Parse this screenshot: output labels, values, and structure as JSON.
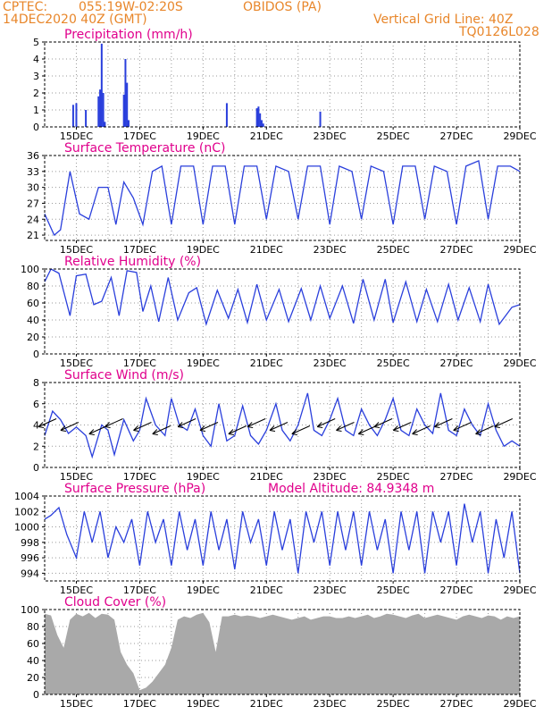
{
  "header": {
    "center": "CPTEC:",
    "location": "055:19W-02:20S",
    "station": "OBIDOS (PA)",
    "date": "14DEC2020 40Z (GMT)",
    "grid_note": "Vertical Grid Line: 40Z",
    "run_code": "TQ0126L028"
  },
  "colors": {
    "header": "#e8862a",
    "title": "#e0008c",
    "series": "#2a3fdc",
    "cloud": "#a9a9a9",
    "grid": "#9a9a9a"
  },
  "x_tick_labels": [
    "15DEC",
    "17DEC",
    "19DEC",
    "21DEC",
    "23DEC",
    "25DEC",
    "27DEC",
    "29DEC"
  ],
  "chart_data": [
    {
      "type": "bar",
      "title": "Precipitation (mm/h)",
      "ylim": [
        0,
        5
      ],
      "yticks": [
        0,
        1,
        2,
        3,
        4,
        5
      ],
      "x_days": [
        14.9,
        15.0,
        15.3,
        15.7,
        15.75,
        15.8,
        15.85,
        15.9,
        16.5,
        16.55,
        16.6,
        16.65,
        19.75,
        20.7,
        20.75,
        20.8,
        20.85,
        20.9,
        22.7
      ],
      "values": [
        1.3,
        1.4,
        1.0,
        1.8,
        2.2,
        4.9,
        2.0,
        0.3,
        1.9,
        4.0,
        2.6,
        0.4,
        1.4,
        1.1,
        1.2,
        0.8,
        0.4,
        0.2,
        0.9
      ]
    },
    {
      "type": "line",
      "title": "Surface Temperature (nC)",
      "ylim": [
        20,
        36
      ],
      "yticks": [
        21,
        24,
        27,
        30,
        33,
        36
      ],
      "x_days": [
        14.0,
        14.3,
        14.5,
        14.8,
        15.1,
        15.4,
        15.7,
        16.0,
        16.25,
        16.5,
        16.8,
        17.1,
        17.4,
        17.7,
        18.0,
        18.3,
        18.7,
        19.0,
        19.3,
        19.7,
        20.0,
        20.3,
        20.7,
        21.0,
        21.3,
        21.7,
        22.0,
        22.3,
        22.7,
        23.0,
        23.3,
        23.7,
        24.0,
        24.3,
        24.7,
        25.0,
        25.3,
        25.7,
        26.0,
        26.3,
        26.7,
        27.0,
        27.3,
        27.7,
        28.0,
        28.3,
        28.7,
        29.0
      ],
      "values": [
        25,
        21,
        22,
        33,
        25,
        24,
        30,
        30,
        23,
        31,
        28,
        23,
        33,
        34,
        23,
        34,
        34,
        23,
        34,
        34,
        23,
        34,
        34,
        24,
        34,
        33,
        24,
        34,
        34,
        23,
        34,
        33,
        24,
        34,
        33,
        23,
        34,
        34,
        24,
        34,
        33,
        23,
        34,
        35,
        24,
        34,
        34,
        33
      ]
    },
    {
      "type": "line",
      "title": "Relative Humidity (%)",
      "ylim": [
        0,
        100
      ],
      "yticks": [
        0,
        20,
        40,
        60,
        80,
        100
      ],
      "x_days": [
        14.0,
        14.2,
        14.45,
        14.8,
        15.0,
        15.3,
        15.55,
        15.8,
        16.1,
        16.35,
        16.6,
        16.9,
        17.1,
        17.35,
        17.6,
        17.9,
        18.2,
        18.55,
        18.8,
        19.1,
        19.45,
        19.8,
        20.1,
        20.4,
        20.7,
        21.0,
        21.4,
        21.7,
        22.1,
        22.4,
        22.7,
        23.0,
        23.4,
        23.75,
        24.05,
        24.4,
        24.75,
        25.0,
        25.4,
        25.75,
        26.05,
        26.4,
        26.75,
        27.05,
        27.4,
        27.75,
        28.0,
        28.35,
        28.75,
        29.0
      ],
      "values": [
        85,
        100,
        95,
        45,
        92,
        94,
        58,
        62,
        90,
        45,
        98,
        96,
        50,
        80,
        38,
        90,
        40,
        72,
        78,
        35,
        75,
        42,
        76,
        37,
        82,
        40,
        76,
        38,
        77,
        40,
        80,
        42,
        80,
        36,
        88,
        40,
        88,
        37,
        85,
        38,
        76,
        38,
        82,
        40,
        78,
        38,
        82,
        35,
        55,
        58
      ]
    },
    {
      "type": "line",
      "title": "Surface Wind (m/s)",
      "ylim": [
        0,
        8
      ],
      "yticks": [
        0,
        2,
        4,
        6,
        8
      ],
      "x_days": [
        14.0,
        14.25,
        14.5,
        14.75,
        15.0,
        15.3,
        15.5,
        15.8,
        16.0,
        16.2,
        16.5,
        16.8,
        17.0,
        17.2,
        17.5,
        17.8,
        18.0,
        18.25,
        18.5,
        18.75,
        19.0,
        19.25,
        19.5,
        19.75,
        20.0,
        20.25,
        20.5,
        20.75,
        21.0,
        21.3,
        21.5,
        21.75,
        22.0,
        22.3,
        22.5,
        22.75,
        23.0,
        23.25,
        23.5,
        23.75,
        24.0,
        24.25,
        24.5,
        24.75,
        25.0,
        25.25,
        25.5,
        25.75,
        26.0,
        26.25,
        26.5,
        26.75,
        27.0,
        27.25,
        27.5,
        27.75,
        28.0,
        28.25,
        28.5,
        28.75,
        29.0
      ],
      "values": [
        3,
        5.3,
        4.5,
        3.2,
        3.8,
        3.0,
        1.0,
        4.0,
        3.5,
        1.2,
        4.5,
        2.5,
        3.5,
        6.5,
        4.0,
        3.0,
        6.5,
        4.0,
        3.5,
        5.5,
        3.0,
        2.0,
        6.0,
        2.5,
        3.0,
        5.8,
        3.0,
        2.2,
        3.5,
        6.0,
        3.5,
        2.5,
        4.0,
        7.0,
        3.5,
        3.0,
        4.5,
        6.5,
        3.5,
        3.0,
        5.5,
        4.0,
        3.0,
        4.5,
        6.5,
        3.5,
        3.0,
        5.5,
        4.0,
        3.2,
        7.0,
        3.5,
        3.0,
        5.5,
        4.0,
        3.0,
        6.0,
        3.5,
        2.0,
        2.5,
        2.0
      ]
    },
    {
      "type": "line",
      "title": "Surface Pressure (hPa)",
      "annotation": "Model Altitude: 84.9348 m",
      "ylim": [
        993,
        1004
      ],
      "yticks": [
        994,
        996,
        998,
        1000,
        1002,
        1004
      ],
      "x_days": [
        14.0,
        14.2,
        14.45,
        14.7,
        15.0,
        15.25,
        15.5,
        15.75,
        16.0,
        16.25,
        16.5,
        16.75,
        17.0,
        17.25,
        17.5,
        17.75,
        18.0,
        18.25,
        18.5,
        18.75,
        19.0,
        19.25,
        19.5,
        19.75,
        20.0,
        20.25,
        20.5,
        20.75,
        21.0,
        21.25,
        21.5,
        21.75,
        22.0,
        22.25,
        22.5,
        22.75,
        23.0,
        23.25,
        23.5,
        23.75,
        24.0,
        24.25,
        24.5,
        24.75,
        25.0,
        25.25,
        25.5,
        25.75,
        26.0,
        26.25,
        26.5,
        26.75,
        27.0,
        27.25,
        27.5,
        27.75,
        28.0,
        28.25,
        28.5,
        28.75,
        29.0
      ],
      "values": [
        1001,
        1001.5,
        1002.5,
        999,
        996,
        1002,
        998,
        1002,
        996,
        1000,
        998,
        1001,
        995,
        1002,
        998,
        1001,
        995,
        1002,
        997,
        1001,
        995,
        1002,
        997,
        1001,
        994.5,
        1002,
        998,
        1001,
        995,
        1002,
        997,
        1001,
        994,
        1002,
        998,
        1002,
        995,
        1002,
        997,
        1002,
        995,
        1002,
        997,
        1001,
        994,
        1002,
        997,
        1002,
        994,
        1002,
        998,
        1002,
        995,
        1003,
        998,
        1002,
        994,
        1001,
        996,
        1002,
        994
      ]
    },
    {
      "type": "area",
      "title": "Cloud Cover (%)",
      "ylim": [
        0,
        100
      ],
      "yticks": [
        0,
        20,
        40,
        60,
        80,
        100
      ],
      "x_days": [
        14.0,
        14.2,
        14.4,
        14.6,
        14.8,
        15.0,
        15.2,
        15.4,
        15.6,
        15.8,
        16.0,
        16.2,
        16.4,
        16.6,
        16.8,
        17.0,
        17.2,
        17.4,
        17.6,
        17.8,
        18.0,
        18.2,
        18.4,
        18.6,
        18.8,
        19.0,
        19.2,
        19.4,
        19.6,
        19.8,
        20.0,
        20.2,
        20.4,
        20.6,
        20.8,
        21.0,
        21.2,
        21.4,
        21.6,
        21.8,
        22.0,
        22.2,
        22.4,
        22.6,
        22.8,
        23.0,
        23.2,
        23.4,
        23.6,
        23.8,
        24.0,
        24.2,
        24.4,
        24.6,
        24.8,
        25.0,
        25.2,
        25.4,
        25.6,
        25.8,
        26.0,
        26.2,
        26.4,
        26.6,
        26.8,
        27.0,
        27.2,
        27.4,
        27.6,
        27.8,
        28.0,
        28.2,
        28.4,
        28.6,
        28.8,
        29.0
      ],
      "values": [
        95,
        93,
        70,
        55,
        88,
        95,
        92,
        96,
        90,
        95,
        94,
        88,
        50,
        35,
        25,
        5,
        8,
        15,
        25,
        35,
        55,
        88,
        92,
        90,
        94,
        96,
        85,
        50,
        92,
        92,
        94,
        92,
        93,
        92,
        90,
        92,
        94,
        92,
        90,
        88,
        90,
        92,
        88,
        90,
        92,
        92,
        90,
        90,
        92,
        90,
        92,
        94,
        90,
        92,
        95,
        94,
        92,
        90,
        93,
        95,
        90,
        92,
        94,
        92,
        90,
        88,
        92,
        94,
        92,
        90,
        93,
        92,
        88,
        92,
        90,
        92
      ]
    }
  ]
}
